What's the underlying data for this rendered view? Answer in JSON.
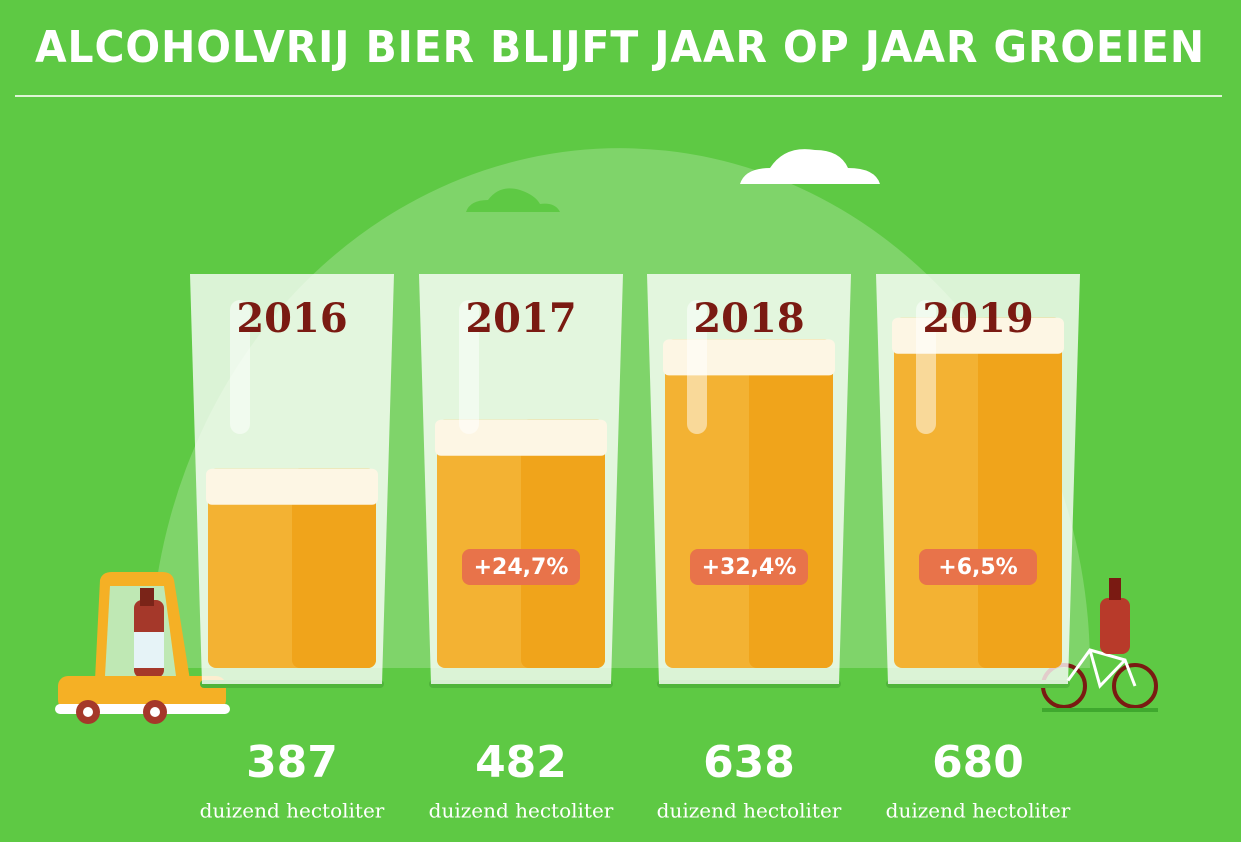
{
  "chart_data": {
    "type": "bar",
    "title": "ALCOHOLVRIJ BIER BLIJFT JAAR OP JAAR GROEIEN",
    "categories": [
      "2016",
      "2017",
      "2018",
      "2019"
    ],
    "values": [
      387,
      482,
      638,
      680
    ],
    "unit_label": "duizend hectoliter",
    "annotations": [
      "+24,7%",
      "+32,4%",
      "+6,5%"
    ],
    "color": "#f3b233",
    "ylim": [
      0,
      800
    ]
  }
}
